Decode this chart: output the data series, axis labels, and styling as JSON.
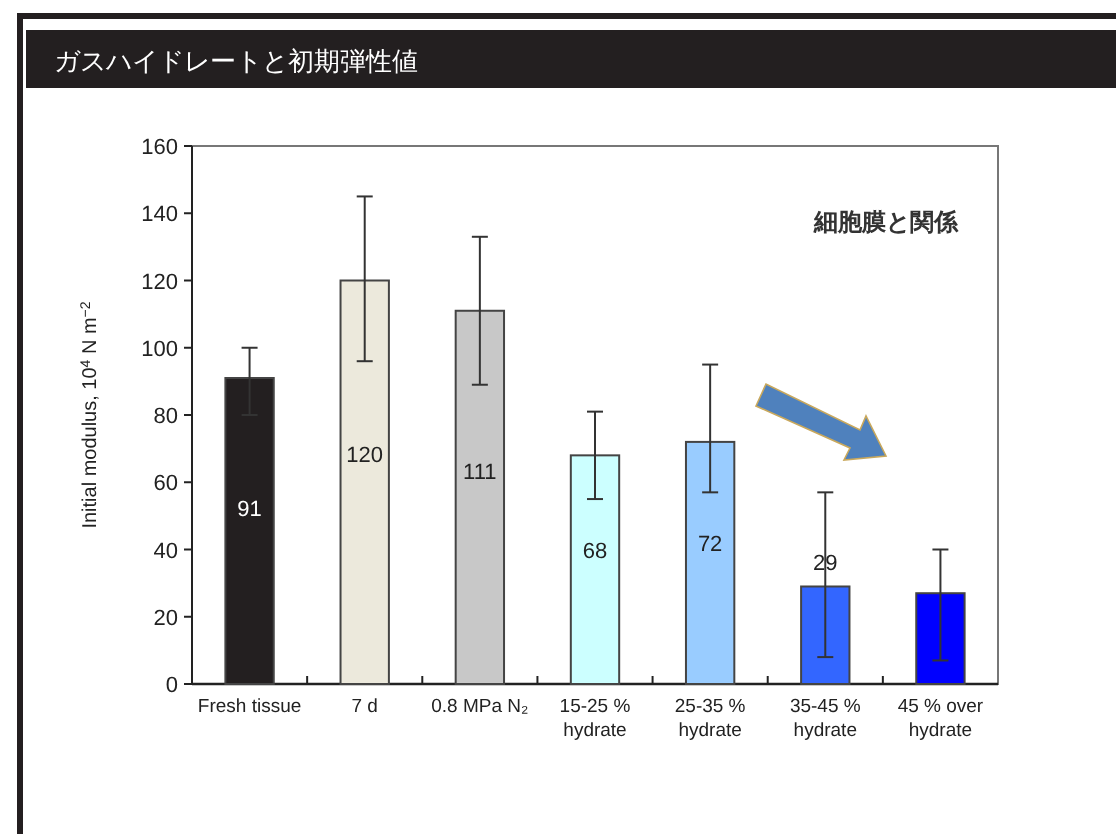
{
  "chart_data": {
    "type": "bar",
    "title": "ガスハイドレートと初期弾性値",
    "ylabel": "Initial modulus, 10$^{4}$ N m$^{−2}$",
    "annotations": [
      "細胞膜と関係"
    ],
    "categories": [
      "Fresh tissue",
      "7 d",
      "0.8 MPa N₂",
      "15-25 %\nhydrate",
      "25-35 %\nhydrate",
      "35-45 %\nhydrate",
      "45 % over\nhydrate"
    ],
    "values": [
      91,
      120,
      111,
      68,
      72,
      29,
      27
    ],
    "colors": [
      "#231f20",
      "#ece9dc",
      "#c8c8c8",
      "#ccffff",
      "#99ccff",
      "#3366ff",
      "#0000ff"
    ],
    "errors": [
      [
        80,
        100
      ],
      [
        96,
        145
      ],
      [
        89,
        133
      ],
      [
        55,
        81
      ],
      [
        57,
        95
      ],
      [
        8,
        57
      ],
      [
        7,
        40
      ]
    ],
    "value_labels": [
      "91",
      "120",
      "111",
      "68",
      "72",
      "29",
      null
    ],
    "ylim": [
      0,
      160
    ],
    "yticks": [
      0,
      20,
      40,
      60,
      80,
      100,
      120,
      140,
      160
    ]
  }
}
